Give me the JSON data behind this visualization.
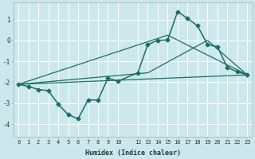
{
  "xlabel": "Humidex (Indice chaleur)",
  "bg_color": "#cce8ec",
  "grid_color": "#ffffff",
  "line_color": "#1a6e65",
  "xlim": [
    -0.5,
    23.5
  ],
  "ylim": [
    -4.6,
    1.8
  ],
  "xticks": [
    0,
    1,
    2,
    3,
    4,
    5,
    6,
    7,
    8,
    9,
    10,
    12,
    13,
    14,
    15,
    16,
    17,
    18,
    19,
    20,
    21,
    22,
    23
  ],
  "xtick_labels": [
    "0",
    "1",
    "2",
    "3",
    "4",
    "5",
    "6",
    "7",
    "8",
    "9",
    "10",
    "12",
    "13",
    "14",
    "15",
    "16",
    "17",
    "18",
    "19",
    "20",
    "21",
    "22",
    "23"
  ],
  "yticks": [
    -4,
    -3,
    -2,
    -1,
    0,
    1
  ],
  "main_x": [
    0,
    1,
    2,
    3,
    4,
    5,
    6,
    7,
    8,
    9,
    10,
    12,
    13,
    14,
    15,
    16,
    17,
    18,
    19,
    20,
    21,
    22,
    23
  ],
  "main_y": [
    -2.1,
    -2.2,
    -2.35,
    -2.4,
    -3.05,
    -3.55,
    -3.75,
    -2.85,
    -2.85,
    -1.8,
    -1.95,
    -1.55,
    -0.2,
    0.0,
    0.02,
    1.38,
    1.05,
    0.7,
    -0.2,
    -0.3,
    -1.3,
    -1.5,
    -1.65
  ],
  "trend1_x": [
    0,
    23
  ],
  "trend1_y": [
    -2.1,
    -1.65
  ],
  "trend2_x": [
    0,
    13,
    19,
    23
  ],
  "trend2_y": [
    -2.1,
    -1.55,
    0.0,
    -1.65
  ],
  "trend3_x": [
    0,
    15,
    23
  ],
  "trend3_y": [
    -2.1,
    0.25,
    -1.65
  ]
}
